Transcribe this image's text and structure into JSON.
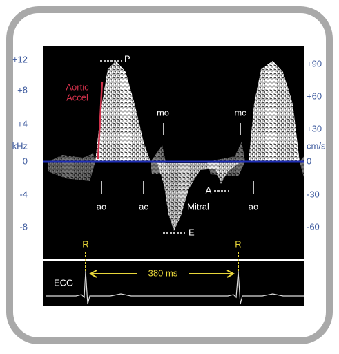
{
  "left_axis": {
    "unit": "kHz",
    "ticks": [
      "+12",
      "+8",
      "+4",
      "0",
      "-4",
      "-8"
    ]
  },
  "right_axis": {
    "unit": "cm/s",
    "ticks": [
      "+90",
      "+60",
      "+30",
      "0",
      "-30",
      "-60"
    ]
  },
  "labels": {
    "peak": "P",
    "aortic_accel": [
      "Aortic",
      "Accel"
    ],
    "mitral_open": "mo",
    "mitral_close": "mc",
    "aortic_open_1": "ao",
    "aortic_close": "ac",
    "aortic_open_2": "ao",
    "atrial_wave": "A",
    "mitral": "Mitral",
    "early_wave": "E"
  },
  "ecg": {
    "label": "ECG",
    "r_wave_1": "R",
    "r_wave_2": "R",
    "interval": "380 ms"
  }
}
